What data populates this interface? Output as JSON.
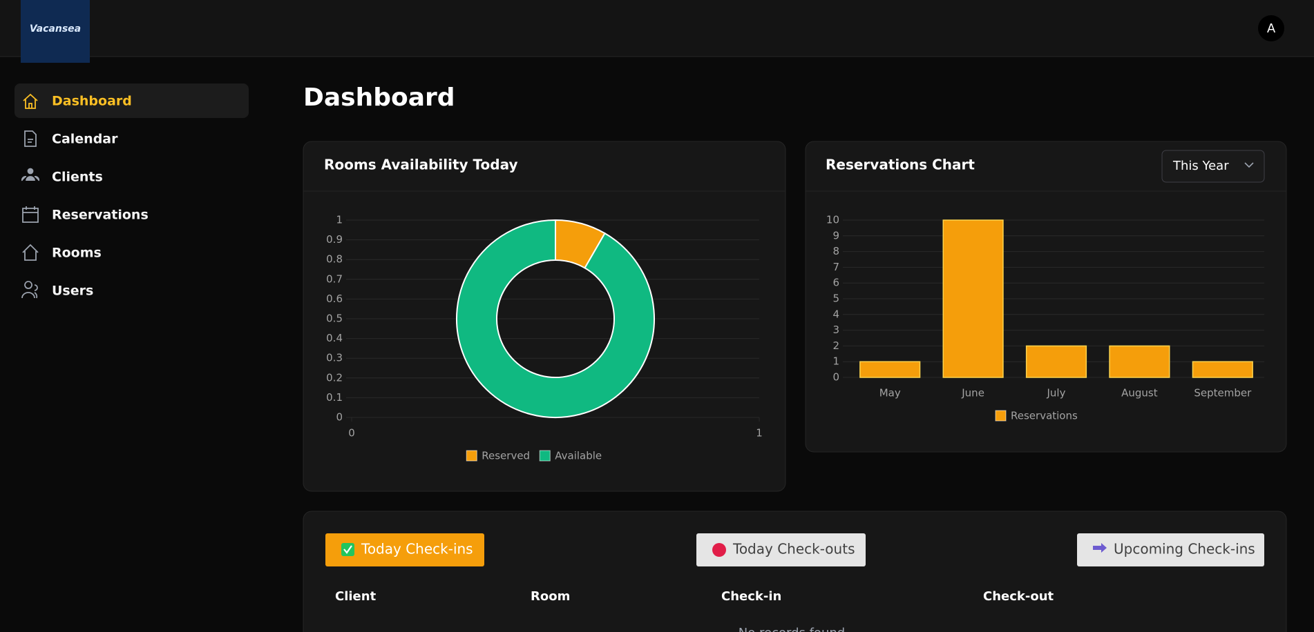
{
  "logo": "Vacansea",
  "header": {
    "avatar": "A"
  },
  "sidebar": {
    "items": [
      "Dashboard",
      "Calendar",
      "Clients",
      "Reservations",
      "Rooms",
      "Users"
    ]
  },
  "page_title": "Dashboard",
  "chart_data": [
    {
      "type": "doughnut",
      "title": "Rooms Availability Today",
      "categories": [
        "Reserved",
        "Available"
      ],
      "values": [
        1,
        11
      ],
      "colors": [
        "#f59e0b",
        "#10b981"
      ],
      "ylim": [
        0,
        1
      ],
      "yticks": [
        0,
        0.1,
        0.2,
        0.3,
        0.4,
        0.5,
        0.6,
        0.7,
        0.8,
        0.9,
        1
      ],
      "xlim": [
        0,
        1
      ],
      "xticks": [
        0,
        1
      ],
      "grid": true
    },
    {
      "type": "bar",
      "title": "Reservations Chart",
      "period_selector": "This Year",
      "categories": [
        "May",
        "June",
        "July",
        "August",
        "September"
      ],
      "series": [
        {
          "name": "Reservations",
          "color": "#f59e0b",
          "values": [
            1,
            10,
            2,
            2,
            1
          ]
        }
      ],
      "ylim": [
        0,
        10
      ],
      "yticks": [
        0,
        1,
        2,
        3,
        4,
        5,
        6,
        7,
        8,
        9,
        10
      ],
      "grid": true
    }
  ],
  "table": {
    "tabs": [
      "Today Check-ins",
      "Today Check-outs",
      "Upcoming Check-ins"
    ],
    "columns": [
      "Client",
      "Room",
      "Check-in",
      "Check-out"
    ],
    "empty_message": "No records found"
  }
}
